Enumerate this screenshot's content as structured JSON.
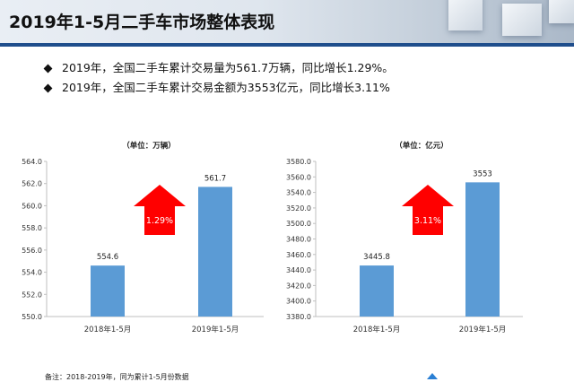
{
  "title": "2019年1-5月二手车市场整体表现",
  "bullets": [
    "2019年，全国二手车累计交易量为561.7万辆，同比增长1.29%。",
    "2019年，全国二手车累计交易金额为3553亿元，同比增长3.11%"
  ],
  "note": "备注：2018-2019年，同为累计1-5月份数据",
  "colors": {
    "bar": "#5b9bd5",
    "arrow": "#ff0000",
    "header_accent": "#1f4e8c"
  },
  "chart_data": [
    {
      "type": "bar",
      "unit_label": "（单位：万辆）",
      "categories": [
        "2018年1-5月",
        "2019年1-5月"
      ],
      "values": [
        554.6,
        561.7
      ],
      "value_labels": [
        "554.6",
        "561.7"
      ],
      "ylim": [
        550.0,
        564.0
      ],
      "yticks": [
        "550.0",
        "552.0",
        "554.0",
        "556.0",
        "558.0",
        "560.0",
        "562.0",
        "564.0"
      ],
      "growth_label": "1.29%",
      "grid": false,
      "legend": "none"
    },
    {
      "type": "bar",
      "unit_label": "（单位：亿元）",
      "categories": [
        "2018年1-5月",
        "2019年1-5月"
      ],
      "values": [
        3445.8,
        3553
      ],
      "value_labels": [
        "3445.8",
        "3553"
      ],
      "ylim": [
        3380.0,
        3580.0
      ],
      "yticks": [
        "3380.0",
        "3400.0",
        "3420.0",
        "3440.0",
        "3460.0",
        "3480.0",
        "3500.0",
        "3520.0",
        "3540.0",
        "3560.0",
        "3580.0"
      ],
      "growth_label": "3.11%",
      "grid": false,
      "legend": "none"
    }
  ]
}
